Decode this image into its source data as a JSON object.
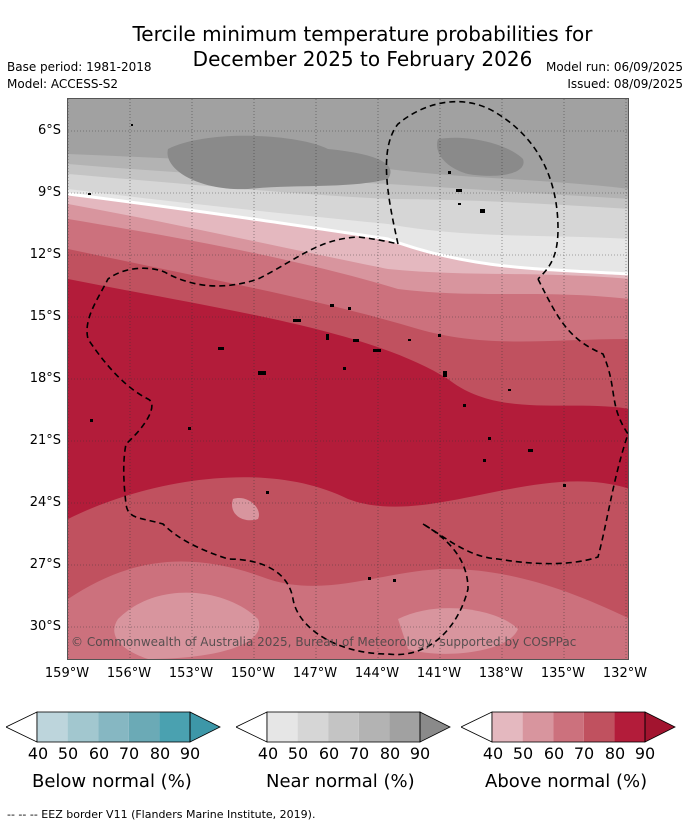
{
  "title_line1": "Tercile minimum temperature probabilities for",
  "title_line2": "December 2025 to February 2026",
  "base_period": "Base period: 1981-2018",
  "model": "Model: ACCESS-S2",
  "model_run": "Model run: 06/09/2025",
  "issued": "Issued: 08/09/2025",
  "copyright": "© Commonwealth of Australia 2025, Bureau of Meteorology, supported by COSPPac",
  "lat_labels": [
    "6°S",
    "9°S",
    "12°S",
    "15°S",
    "18°S",
    "21°S",
    "24°S",
    "27°S",
    "30°S"
  ],
  "lon_labels": [
    "159°W",
    "156°W",
    "153°W",
    "150°W",
    "147°W",
    "144°W",
    "141°W",
    "138°W",
    "135°W",
    "132°W"
  ],
  "legend": {
    "below": {
      "label": "Below normal (%)",
      "ticks": [
        "40",
        "50",
        "60",
        "70",
        "80",
        "90"
      ],
      "colors": [
        "#bdd5dc",
        "#a2c7cf",
        "#86b7c2",
        "#6baab6",
        "#4aa1b0"
      ]
    },
    "near": {
      "label": "Near normal (%)",
      "ticks": [
        "40",
        "50",
        "60",
        "70",
        "80",
        "90"
      ],
      "colors": [
        "#e6e6e6",
        "#d6d6d6",
        "#c4c4c4",
        "#b3b3b3",
        "#a1a1a1"
      ]
    },
    "above": {
      "label": "Above normal (%)",
      "ticks": [
        "40",
        "50",
        "60",
        "70",
        "80",
        "90"
      ],
      "colors": [
        "#e4b8bf",
        "#d8959e",
        "#cc717d",
        "#c0515f",
        "#b31c3a"
      ]
    }
  },
  "footnote": "-- -- -- EEZ border V11 (Flanders Marine Institute, 2019)."
}
